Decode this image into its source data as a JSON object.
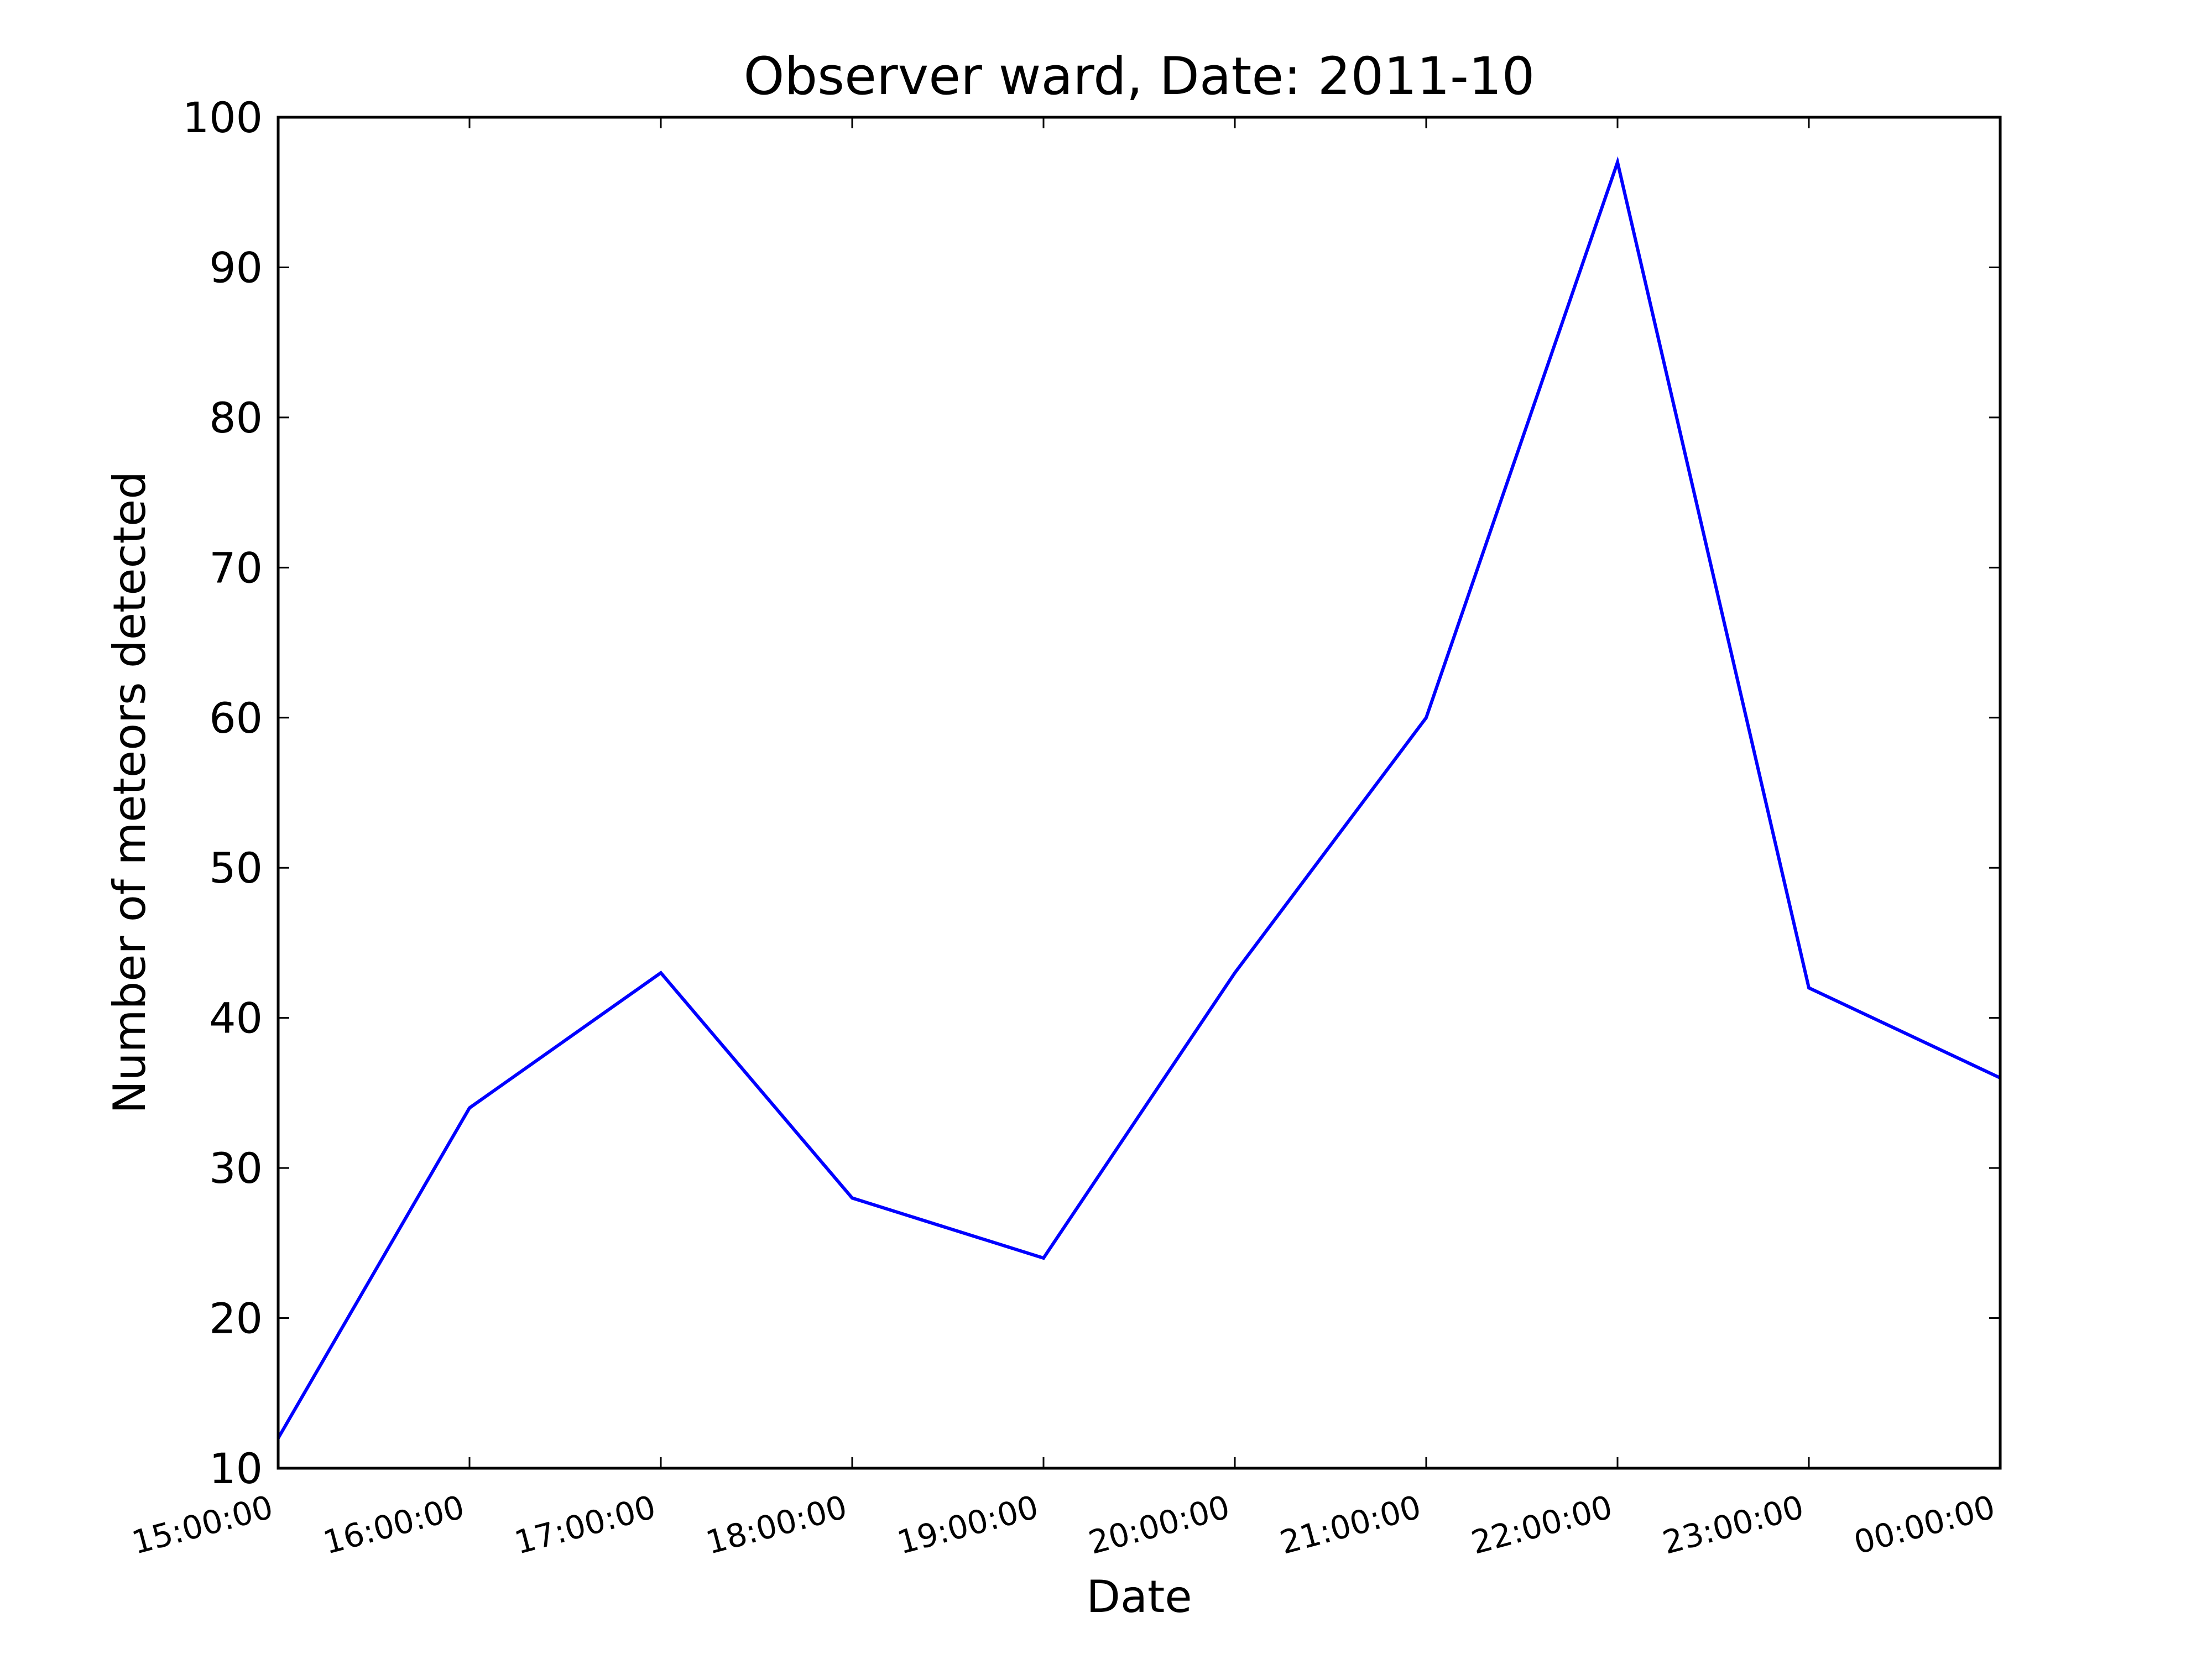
{
  "chart_data": {
    "type": "line",
    "title": "Observer ward, Date: 2011-10",
    "xlabel": "Date",
    "ylabel": "Number of meteors detected",
    "x": [
      "15:00:00",
      "16:00:00",
      "17:00:00",
      "18:00:00",
      "19:00:00",
      "20:00:00",
      "21:00:00",
      "22:00:00",
      "23:00:00",
      "00:00:00"
    ],
    "series": [
      {
        "values": [
          12,
          34,
          43,
          28,
          24,
          43,
          60,
          97,
          42,
          36
        ]
      }
    ],
    "ylim": [
      10,
      100
    ],
    "yticks": [
      10,
      20,
      30,
      40,
      50,
      60,
      70,
      80,
      90,
      100
    ],
    "grid": false,
    "line_color": "#0000ff"
  }
}
